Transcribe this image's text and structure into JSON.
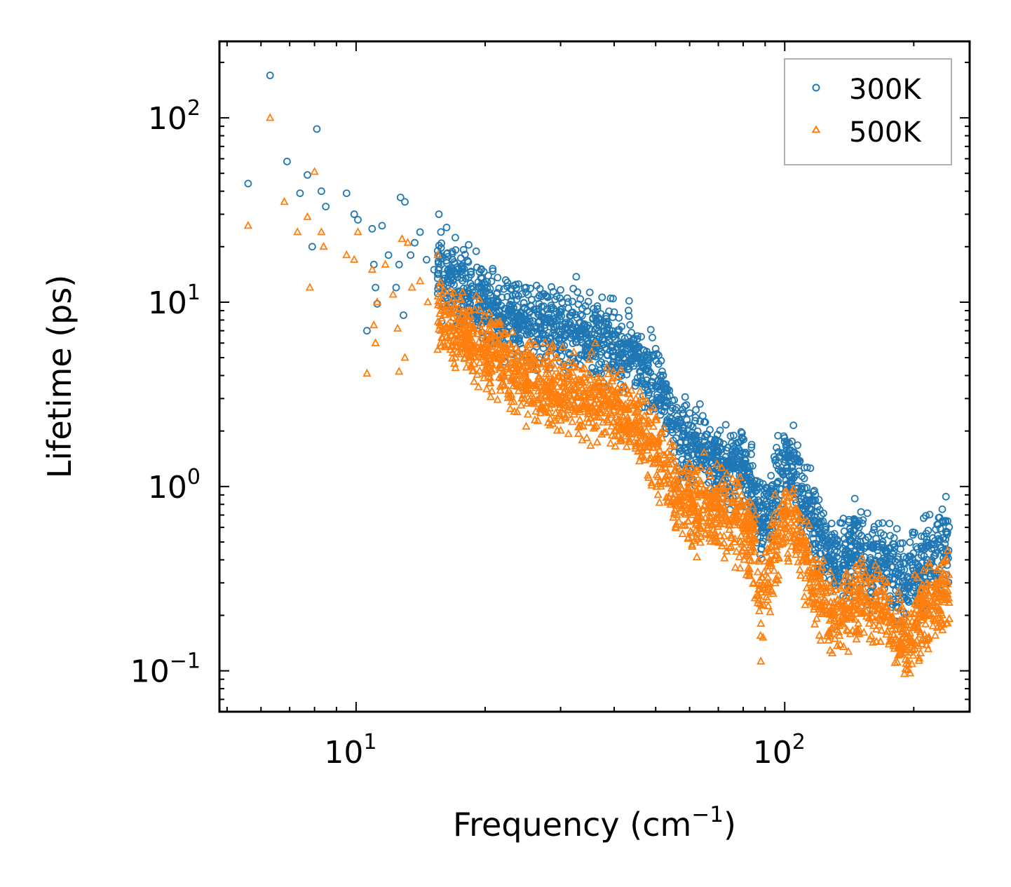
{
  "chart_data": {
    "type": "scatter",
    "xscale": "log",
    "yscale": "log",
    "xlabel": "Frequency (cm",
    "xlabel_sup": "−1",
    "xlabel_suffix": ")",
    "ylabel": "Lifetime (ps)",
    "xlim": [
      4.8,
      270
    ],
    "ylim": [
      0.06,
      260
    ],
    "x_ticks": [
      {
        "value": 10,
        "base": "10",
        "exp": "1"
      },
      {
        "value": 100,
        "base": "10",
        "exp": "2"
      }
    ],
    "y_ticks": [
      {
        "value": 0.1,
        "base": "10",
        "exp": "−1"
      },
      {
        "value": 1,
        "base": "10",
        "exp": "0"
      },
      {
        "value": 10,
        "base": "10",
        "exp": "1"
      },
      {
        "value": 100,
        "base": "10",
        "exp": "2"
      }
    ],
    "legend_position": "top-right",
    "series": [
      {
        "name": "300K",
        "marker": "circle",
        "color": "#1f77b4",
        "scattered_points": [
          [
            5.6,
            44
          ],
          [
            6.3,
            170
          ],
          [
            6.9,
            58
          ],
          [
            7.4,
            39
          ],
          [
            7.7,
            49
          ],
          [
            7.9,
            20
          ],
          [
            8.1,
            87
          ],
          [
            8.3,
            40
          ],
          [
            8.5,
            33
          ],
          [
            9.5,
            39
          ],
          [
            9.9,
            30
          ],
          [
            10.1,
            28
          ],
          [
            10.6,
            7
          ],
          [
            10.9,
            25
          ],
          [
            11.0,
            16
          ],
          [
            11.1,
            12
          ],
          [
            11.2,
            9.8
          ],
          [
            11.5,
            26
          ],
          [
            11.9,
            18
          ],
          [
            12.4,
            12
          ],
          [
            12.6,
            16
          ],
          [
            12.7,
            37
          ],
          [
            13.0,
            35
          ],
          [
            12.9,
            8.5
          ],
          [
            13.4,
            18
          ],
          [
            13.7,
            21
          ],
          [
            14.1,
            24
          ],
          [
            14.6,
            17
          ],
          [
            15.2,
            15
          ],
          [
            15.6,
            30
          ],
          [
            15.5,
            19
          ]
        ],
        "trend": [
          [
            15,
            16
          ],
          [
            20,
            9.5
          ],
          [
            25,
            8.0
          ],
          [
            30,
            7.0
          ],
          [
            35,
            6.5
          ],
          [
            40,
            6.0
          ],
          [
            45,
            5.2
          ],
          [
            50,
            3.5
          ],
          [
            55,
            2.2
          ],
          [
            60,
            1.7
          ],
          [
            65,
            1.5
          ],
          [
            70,
            1.3
          ],
          [
            75,
            1.3
          ],
          [
            80,
            1.3
          ],
          [
            85,
            0.9
          ],
          [
            88,
            0.6
          ],
          [
            92,
            0.8
          ],
          [
            100,
            1.2
          ],
          [
            105,
            1.3
          ],
          [
            110,
            0.9
          ],
          [
            120,
            0.55
          ],
          [
            130,
            0.38
          ],
          [
            140,
            0.42
          ],
          [
            150,
            0.45
          ],
          [
            160,
            0.38
          ],
          [
            170,
            0.42
          ],
          [
            180,
            0.34
          ],
          [
            190,
            0.28
          ],
          [
            200,
            0.34
          ],
          [
            215,
            0.4
          ],
          [
            230,
            0.45
          ],
          [
            240,
            0.55
          ]
        ]
      },
      {
        "name": "500K",
        "marker": "triangle",
        "color": "#ff7f0e",
        "scattered_points": [
          [
            5.6,
            26
          ],
          [
            6.3,
            100
          ],
          [
            6.8,
            35
          ],
          [
            7.3,
            24
          ],
          [
            7.7,
            29
          ],
          [
            7.8,
            12
          ],
          [
            8.0,
            51
          ],
          [
            8.3,
            24
          ],
          [
            8.4,
            20
          ],
          [
            9.5,
            18
          ],
          [
            9.9,
            17
          ],
          [
            10.1,
            24
          ],
          [
            10.6,
            4.1
          ],
          [
            10.9,
            15
          ],
          [
            11.0,
            7.5
          ],
          [
            11.1,
            6
          ],
          [
            11.2,
            10
          ],
          [
            11.7,
            16
          ],
          [
            12.2,
            11
          ],
          [
            12.5,
            7.2
          ],
          [
            12.6,
            4.2
          ],
          [
            12.8,
            22
          ],
          [
            13.0,
            5
          ],
          [
            13.2,
            21
          ],
          [
            13.5,
            12
          ],
          [
            14.1,
            13
          ],
          [
            14.7,
            10
          ],
          [
            15.5,
            18
          ],
          [
            15.8,
            9
          ]
        ],
        "trend": [
          [
            15,
            9
          ],
          [
            20,
            5.5
          ],
          [
            25,
            4.0
          ],
          [
            30,
            3.2
          ],
          [
            35,
            2.9
          ],
          [
            40,
            2.6
          ],
          [
            45,
            2.2
          ],
          [
            50,
            1.6
          ],
          [
            55,
            1.0
          ],
          [
            60,
            0.8
          ],
          [
            65,
            0.75
          ],
          [
            70,
            0.72
          ],
          [
            75,
            0.7
          ],
          [
            80,
            0.65
          ],
          [
            85,
            0.45
          ],
          [
            88,
            0.22
          ],
          [
            92,
            0.35
          ],
          [
            100,
            0.7
          ],
          [
            105,
            0.65
          ],
          [
            110,
            0.45
          ],
          [
            120,
            0.25
          ],
          [
            130,
            0.2
          ],
          [
            140,
            0.22
          ],
          [
            150,
            0.25
          ],
          [
            160,
            0.2
          ],
          [
            170,
            0.24
          ],
          [
            180,
            0.17
          ],
          [
            190,
            0.13
          ],
          [
            200,
            0.18
          ],
          [
            215,
            0.22
          ],
          [
            230,
            0.25
          ],
          [
            240,
            0.3
          ]
        ]
      }
    ]
  }
}
